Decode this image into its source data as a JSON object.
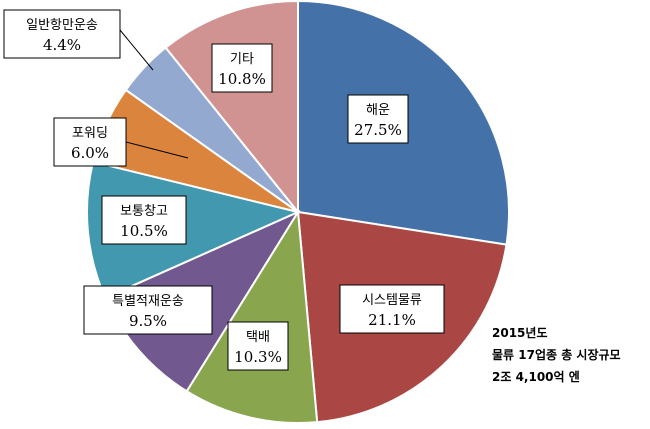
{
  "chart_data": {
    "type": "pie",
    "start_angle_deg": 0,
    "direction": "clockwise",
    "slices": [
      {
        "label": "해운",
        "value": 27.5,
        "value_label": "27.5%",
        "color": "#4472A8"
      },
      {
        "label": "시스템물류",
        "value": 21.1,
        "value_label": "21.1%",
        "color": "#AA4744"
      },
      {
        "label": "택배",
        "value": 10.3,
        "value_label": "10.3%",
        "color": "#89A54E"
      },
      {
        "label": "특별적재운송",
        "value": 9.5,
        "value_label": "9.5%",
        "color": "#71588F"
      },
      {
        "label": "보통창고",
        "value": 10.5,
        "value_label": "10.5%",
        "color": "#4198AF"
      },
      {
        "label": "포워딩",
        "value": 6.0,
        "value_label": "6.0%",
        "color": "#DB843D"
      },
      {
        "label": "일반항만운송",
        "value": 4.4,
        "value_label": "4.4%",
        "color": "#93A9CF"
      },
      {
        "label": "기타",
        "value": 10.8,
        "value_label": "10.8%",
        "color": "#D19392"
      }
    ]
  },
  "annotation": {
    "line1": "2015년도",
    "line2": "물류 17업종 총 시장규모",
    "line3": "2조 4,100억 엔"
  }
}
